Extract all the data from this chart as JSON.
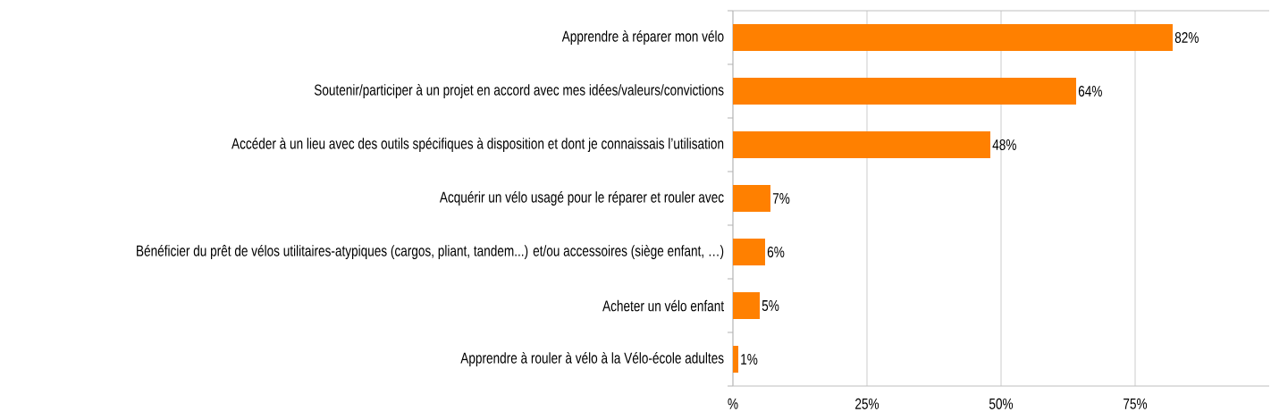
{
  "chart_data": {
    "type": "bar",
    "orientation": "horizontal",
    "categories": [
      "Apprendre à réparer mon vélo",
      "Soutenir/participer à un projet en accord avec mes idées/valeurs/convictions",
      "Accéder à un lieu avec des outils spécifiques à disposition et dont je connaissais l’utilisation",
      "Acquérir un vélo usagé pour le réparer et rouler avec",
      "Bénéficier du prêt de vélos utilitaires-atypiques (cargos, pliant, tandem...) et/ou accessoires (siège enfant, …)",
      "Acheter un vélo enfant",
      "Apprendre à rouler à vélo à la Vélo-école adultes"
    ],
    "values": [
      82,
      64,
      48,
      7,
      6,
      5,
      1
    ],
    "value_labels": [
      "82%",
      "64%",
      "48%",
      "7%",
      "6%",
      "5%",
      "1%"
    ],
    "color": "#ff8000",
    "xlim": [
      0,
      100
    ],
    "xticks": [
      {
        "value": 0,
        "label": "%"
      },
      {
        "value": 25,
        "label": "25%"
      },
      {
        "value": 50,
        "label": "50%"
      },
      {
        "value": 75,
        "label": "75%"
      }
    ],
    "grid": "x"
  }
}
